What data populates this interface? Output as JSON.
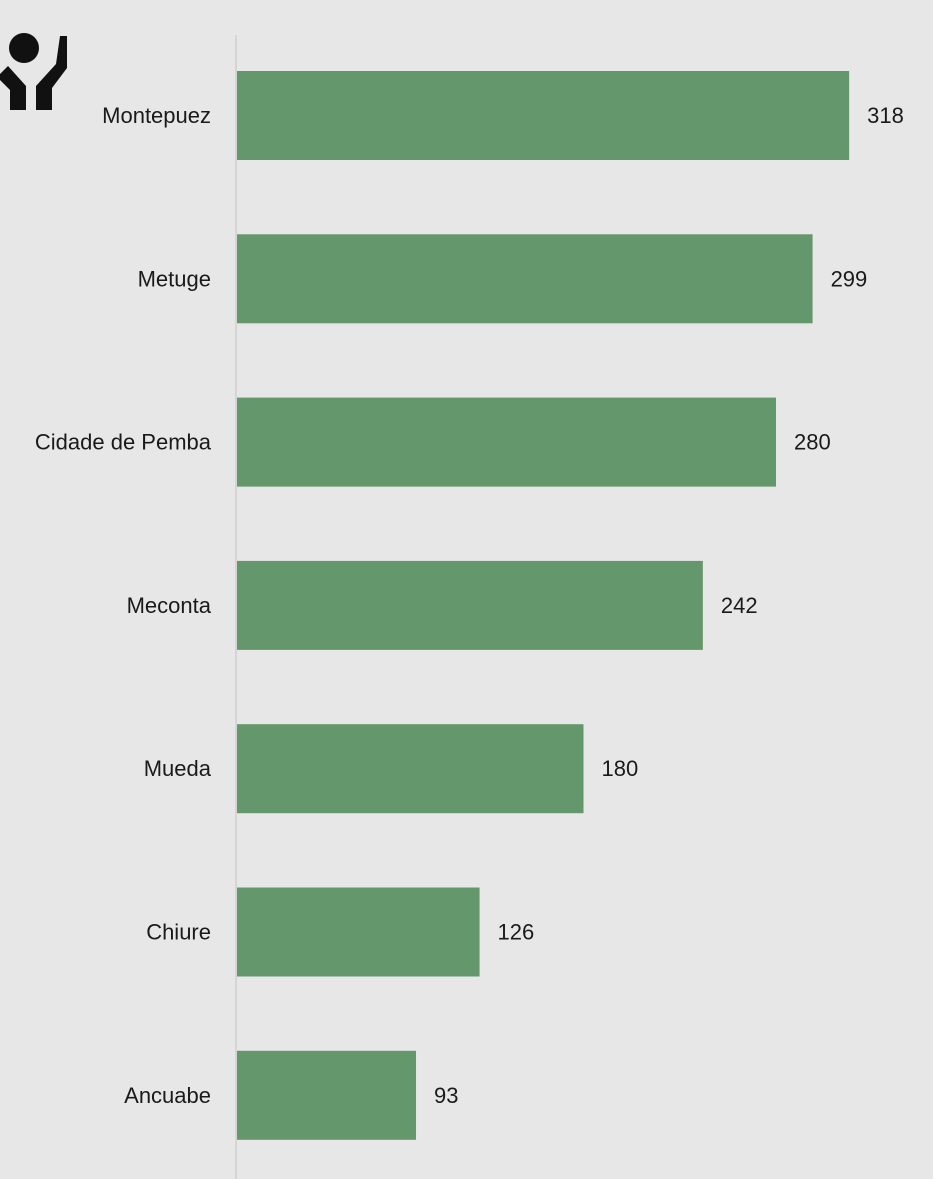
{
  "icon": "hands-holding-person-icon",
  "colors": {
    "background": "#e7e7e7",
    "bar": "#65976c",
    "axis": "#cfcfcf",
    "text": "#1a1a1a",
    "icon": "#111111"
  },
  "chart_data": {
    "type": "bar",
    "orientation": "horizontal",
    "categories": [
      "Montepuez",
      "Metuge",
      "Cidade de Pemba",
      "Meconta",
      "Mueda",
      "Chiure",
      "Ancuabe"
    ],
    "values": [
      318,
      299,
      280,
      242,
      180,
      126,
      93
    ],
    "data_labels": true,
    "grid": false,
    "legend": "none",
    "xlim": [
      0,
      330
    ]
  }
}
